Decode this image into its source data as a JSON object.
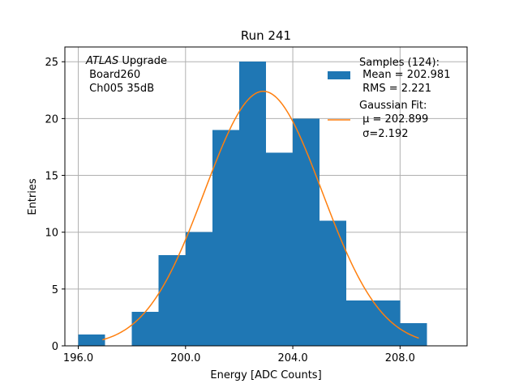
{
  "chart_data": {
    "type": "bar",
    "title": "Run 241",
    "xlabel": "Energy [ADC Counts]",
    "ylabel": "Entries",
    "xlim": [
      195.5,
      210.5
    ],
    "ylim": [
      0,
      26.3
    ],
    "xticks": [
      196,
      200,
      204,
      208
    ],
    "xtick_labels": [
      "196.0",
      "200.0",
      "204.0",
      "208.0"
    ],
    "yticks": [
      0,
      5,
      10,
      15,
      20,
      25
    ],
    "ytick_labels": [
      "0",
      "5",
      "10",
      "15",
      "20",
      "25"
    ],
    "grid": true,
    "histogram": {
      "name": "Samples (124):",
      "color": "#1f77b4",
      "bin_edges": [
        196,
        197,
        198,
        199,
        200,
        201,
        202,
        203,
        204,
        205,
        206,
        207,
        208,
        209
      ],
      "counts": [
        1,
        0,
        3,
        8,
        10,
        19,
        25,
        17,
        20,
        11,
        4,
        4,
        2
      ]
    },
    "fit": {
      "name": "Gaussian Fit:",
      "color": "#ff7f0e",
      "amplitude": 22.4,
      "mu": 202.899,
      "sigma": 2.192,
      "x_range": [
        196.9,
        208.7
      ]
    },
    "legend": {
      "placement": "top-right",
      "samples_lines": [
        "Samples (124):",
        " Mean = 202.981",
        " RMS = 2.221"
      ],
      "fit_lines": [
        "Gaussian Fit:",
        " μ = 202.899",
        " σ=2.192"
      ]
    },
    "annotation": {
      "italic": "ATLAS",
      "rest": " Upgrade",
      "lines": [
        " Board260",
        " Ch005 35dB"
      ]
    }
  },
  "colors": {
    "grid": "#b0b0b0",
    "axes": "#000000",
    "background": "#ffffff"
  }
}
